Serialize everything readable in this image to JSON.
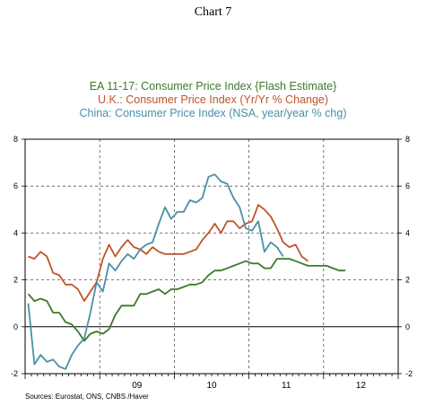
{
  "title": "Chart 7",
  "source": "Sources:  Eurostat, ONS, CNBS /Haver",
  "chart_data": {
    "type": "line",
    "title": "",
    "xlabel": "",
    "ylabel": "",
    "ylim": [
      -2,
      8
    ],
    "y_ticks": [
      -2,
      0,
      2,
      4,
      6,
      8
    ],
    "x_tick_labels": [
      "09",
      "10",
      "11",
      "12"
    ],
    "x_range_months": [
      "2008-01",
      "2012-12"
    ],
    "grid": "dashed horizontal and vertical gridlines",
    "legend_position": "top-center",
    "series": [
      {
        "name": "EA 11-17: Consumer Price Index {Flash Estimate}",
        "color": "#3d7a2a",
        "values": [
          [
            "2008-01",
            1.4
          ],
          [
            "2008-02",
            1.1
          ],
          [
            "2008-03",
            1.2
          ],
          [
            "2008-04",
            1.1
          ],
          [
            "2008-05",
            0.6
          ],
          [
            "2008-06",
            0.6
          ],
          [
            "2008-07",
            0.2
          ],
          [
            "2008-08",
            0.1
          ],
          [
            "2008-09",
            -0.2
          ],
          [
            "2008-10",
            -0.6
          ],
          [
            "2008-11",
            -0.3
          ],
          [
            "2008-12",
            -0.2
          ],
          [
            "2009-01",
            -0.3
          ],
          [
            "2009-02",
            -0.1
          ],
          [
            "2009-03",
            0.5
          ],
          [
            "2009-04",
            0.9
          ],
          [
            "2009-05",
            0.9
          ],
          [
            "2009-06",
            0.9
          ],
          [
            "2009-07",
            1.4
          ],
          [
            "2009-08",
            1.4
          ],
          [
            "2009-09",
            1.5
          ],
          [
            "2009-10",
            1.6
          ],
          [
            "2009-11",
            1.4
          ],
          [
            "2009-12",
            1.6
          ],
          [
            "2010-01",
            1.6
          ],
          [
            "2010-02",
            1.7
          ],
          [
            "2010-03",
            1.8
          ],
          [
            "2010-04",
            1.8
          ],
          [
            "2010-05",
            1.9
          ],
          [
            "2010-06",
            2.2
          ],
          [
            "2010-07",
            2.4
          ],
          [
            "2010-08",
            2.4
          ],
          [
            "2010-09",
            2.5
          ],
          [
            "2010-10",
            2.6
          ],
          [
            "2010-11",
            2.7
          ],
          [
            "2010-12",
            2.8
          ],
          [
            "2011-01",
            2.7
          ],
          [
            "2011-02",
            2.7
          ],
          [
            "2011-03",
            2.5
          ],
          [
            "2011-04",
            2.5
          ],
          [
            "2011-05",
            2.9
          ],
          [
            "2011-06",
            2.9
          ],
          [
            "2011-07",
            2.9
          ],
          [
            "2011-08",
            2.8
          ],
          [
            "2011-09",
            2.7
          ],
          [
            "2011-10",
            2.6
          ],
          [
            "2011-11",
            2.6
          ],
          [
            "2011-12",
            2.6
          ],
          [
            "2012-01",
            2.6
          ],
          [
            "2012-02",
            2.5
          ],
          [
            "2012-03",
            2.4
          ],
          [
            "2012-04",
            2.4
          ]
        ]
      },
      {
        "name": "U.K.: Consumer Price Index (Yr/Yr % Change)",
        "color": "#c0542a",
        "values": [
          [
            "2008-01",
            3.0
          ],
          [
            "2008-02",
            2.9
          ],
          [
            "2008-03",
            3.2
          ],
          [
            "2008-04",
            3.0
          ],
          [
            "2008-05",
            2.3
          ],
          [
            "2008-06",
            2.2
          ],
          [
            "2008-07",
            1.8
          ],
          [
            "2008-08",
            1.8
          ],
          [
            "2008-09",
            1.6
          ],
          [
            "2008-10",
            1.1
          ],
          [
            "2008-11",
            1.5
          ],
          [
            "2008-12",
            1.9
          ],
          [
            "2009-01",
            2.9
          ],
          [
            "2009-02",
            3.5
          ],
          [
            "2009-03",
            3.0
          ],
          [
            "2009-04",
            3.4
          ],
          [
            "2009-05",
            3.7
          ],
          [
            "2009-06",
            3.4
          ],
          [
            "2009-07",
            3.3
          ],
          [
            "2009-08",
            3.1
          ],
          [
            "2009-09",
            3.4
          ],
          [
            "2009-10",
            3.2
          ],
          [
            "2009-11",
            3.1
          ],
          [
            "2009-12",
            3.1
          ],
          [
            "2010-01",
            3.1
          ],
          [
            "2010-02",
            3.1
          ],
          [
            "2010-03",
            3.2
          ],
          [
            "2010-04",
            3.3
          ],
          [
            "2010-05",
            3.7
          ],
          [
            "2010-06",
            4.0
          ],
          [
            "2010-07",
            4.4
          ],
          [
            "2010-08",
            4.0
          ],
          [
            "2010-09",
            4.5
          ],
          [
            "2010-10",
            4.5
          ],
          [
            "2010-11",
            4.2
          ],
          [
            "2010-12",
            4.4
          ],
          [
            "2011-01",
            4.5
          ],
          [
            "2011-02",
            5.2
          ],
          [
            "2011-03",
            5.0
          ],
          [
            "2011-04",
            4.7
          ],
          [
            "2011-05",
            4.2
          ],
          [
            "2011-06",
            3.6
          ],
          [
            "2011-07",
            3.4
          ],
          [
            "2011-08",
            3.5
          ],
          [
            "2011-09",
            3.0
          ],
          [
            "2011-10",
            2.8
          ]
        ]
      },
      {
        "name": "China: Consumer Price Index (NSA, year/year % chg)",
        "color": "#4a8fa8",
        "values": [
          [
            "2008-01",
            1.0
          ],
          [
            "2008-02",
            -1.6
          ],
          [
            "2008-03",
            -1.2
          ],
          [
            "2008-04",
            -1.5
          ],
          [
            "2008-05",
            -1.4
          ],
          [
            "2008-06",
            -1.7
          ],
          [
            "2008-07",
            -1.8
          ],
          [
            "2008-08",
            -1.2
          ],
          [
            "2008-09",
            -0.8
          ],
          [
            "2008-10",
            -0.5
          ],
          [
            "2008-11",
            0.6
          ],
          [
            "2008-12",
            1.9
          ],
          [
            "2009-01",
            1.5
          ],
          [
            "2009-02",
            2.7
          ],
          [
            "2009-03",
            2.4
          ],
          [
            "2009-04",
            2.8
          ],
          [
            "2009-05",
            3.1
          ],
          [
            "2009-06",
            2.9
          ],
          [
            "2009-07",
            3.3
          ],
          [
            "2009-08",
            3.5
          ],
          [
            "2009-09",
            3.6
          ],
          [
            "2009-10",
            4.4
          ],
          [
            "2009-11",
            5.1
          ],
          [
            "2009-12",
            4.6
          ],
          [
            "2010-01",
            4.9
          ],
          [
            "2010-02",
            4.9
          ],
          [
            "2010-03",
            5.4
          ],
          [
            "2010-04",
            5.3
          ],
          [
            "2010-05",
            5.5
          ],
          [
            "2010-06",
            6.4
          ],
          [
            "2010-07",
            6.5
          ],
          [
            "2010-08",
            6.2
          ],
          [
            "2010-09",
            6.1
          ],
          [
            "2010-10",
            5.5
          ],
          [
            "2010-11",
            5.1
          ],
          [
            "2010-12",
            4.2
          ],
          [
            "2011-01",
            4.1
          ],
          [
            "2011-02",
            4.5
          ],
          [
            "2011-03",
            3.2
          ],
          [
            "2011-04",
            3.6
          ],
          [
            "2011-05",
            3.4
          ],
          [
            "2011-06",
            3.0
          ]
        ]
      }
    ]
  }
}
